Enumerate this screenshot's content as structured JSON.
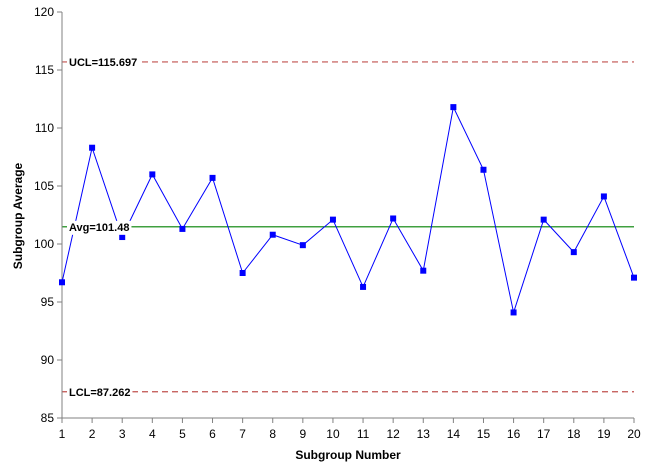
{
  "chart_data": {
    "type": "line",
    "xlabel": "Subgroup Number",
    "ylabel": "Subgroup Average",
    "ylim": [
      85,
      120
    ],
    "yticks": [
      85,
      90,
      95,
      100,
      105,
      110,
      115,
      120
    ],
    "xlim": [
      1,
      20
    ],
    "x": [
      1,
      2,
      3,
      4,
      5,
      6,
      7,
      8,
      9,
      10,
      11,
      12,
      13,
      14,
      15,
      16,
      17,
      18,
      19,
      20
    ],
    "series": [
      {
        "values": [
          96.7,
          108.3,
          100.6,
          106.0,
          101.3,
          105.7,
          97.5,
          100.8,
          99.9,
          102.1,
          96.3,
          102.2,
          97.7,
          111.8,
          106.4,
          94.1,
          102.1,
          99.3,
          104.1,
          97.1
        ],
        "color": "#0000ff"
      }
    ],
    "reference_lines": [
      {
        "label": "UCL=115.697",
        "value": 115.697,
        "color": "#c0504d",
        "style": "dashed"
      },
      {
        "label": "Avg=101.48",
        "value": 101.48,
        "color": "#008000",
        "style": "solid"
      },
      {
        "label": "LCL=87.262",
        "value": 87.262,
        "color": "#c0504d",
        "style": "dashed"
      }
    ],
    "grid": false,
    "legend": "none"
  }
}
